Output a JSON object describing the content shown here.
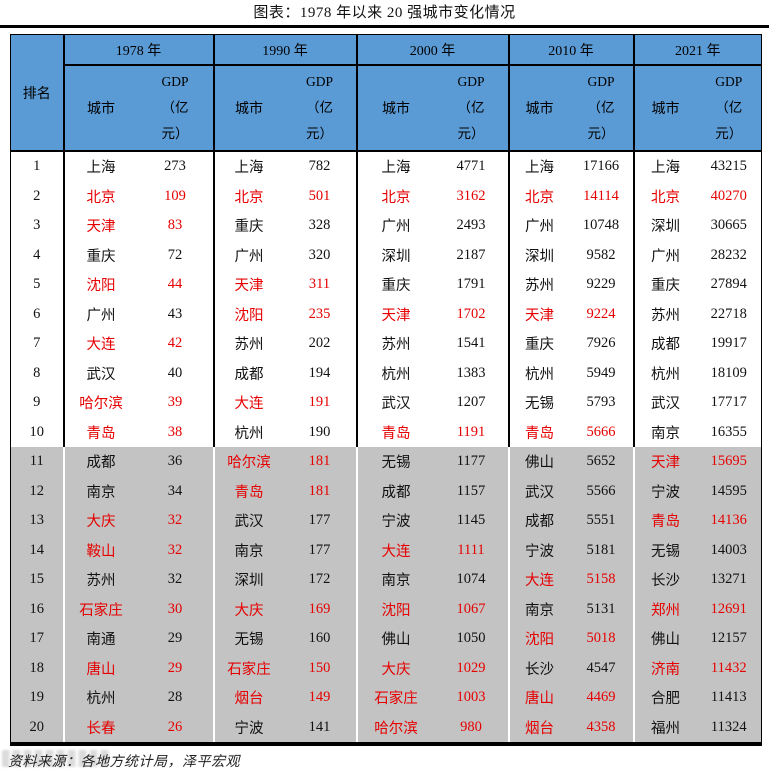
{
  "chart_data": {
    "type": "table",
    "title": "图表：1978 年以来 20 强城市变化情况",
    "rank_header": "排名",
    "years": [
      "1978 年",
      "1990 年",
      "2000 年",
      "2010 年",
      "2021 年"
    ],
    "city_header": "城市",
    "gdp_header_lines": [
      "GDP",
      "（亿",
      "元）"
    ],
    "layout": {
      "rows_11_to_20_highlighted_gray": true,
      "red_text_marks_cities": true
    },
    "rows": [
      {
        "rank": 1,
        "cells": [
          {
            "city": "上海",
            "gdp": 273,
            "red": false
          },
          {
            "city": "上海",
            "gdp": 782,
            "red": false
          },
          {
            "city": "上海",
            "gdp": 4771,
            "red": false
          },
          {
            "city": "上海",
            "gdp": 17166,
            "red": false
          },
          {
            "city": "上海",
            "gdp": 43215,
            "red": false
          }
        ]
      },
      {
        "rank": 2,
        "cells": [
          {
            "city": "北京",
            "gdp": 109,
            "red": true
          },
          {
            "city": "北京",
            "gdp": 501,
            "red": true
          },
          {
            "city": "北京",
            "gdp": 3162,
            "red": true
          },
          {
            "city": "北京",
            "gdp": 14114,
            "red": true
          },
          {
            "city": "北京",
            "gdp": 40270,
            "red": true
          }
        ]
      },
      {
        "rank": 3,
        "cells": [
          {
            "city": "天津",
            "gdp": 83,
            "red": true
          },
          {
            "city": "重庆",
            "gdp": 328,
            "red": false
          },
          {
            "city": "广州",
            "gdp": 2493,
            "red": false
          },
          {
            "city": "广州",
            "gdp": 10748,
            "red": false
          },
          {
            "city": "深圳",
            "gdp": 30665,
            "red": false
          }
        ]
      },
      {
        "rank": 4,
        "cells": [
          {
            "city": "重庆",
            "gdp": 72,
            "red": false
          },
          {
            "city": "广州",
            "gdp": 320,
            "red": false
          },
          {
            "city": "深圳",
            "gdp": 2187,
            "red": false
          },
          {
            "city": "深圳",
            "gdp": 9582,
            "red": false
          },
          {
            "city": "广州",
            "gdp": 28232,
            "red": false
          }
        ]
      },
      {
        "rank": 5,
        "cells": [
          {
            "city": "沈阳",
            "gdp": 44,
            "red": true
          },
          {
            "city": "天津",
            "gdp": 311,
            "red": true
          },
          {
            "city": "重庆",
            "gdp": 1791,
            "red": false
          },
          {
            "city": "苏州",
            "gdp": 9229,
            "red": false
          },
          {
            "city": "重庆",
            "gdp": 27894,
            "red": false
          }
        ]
      },
      {
        "rank": 6,
        "cells": [
          {
            "city": "广州",
            "gdp": 43,
            "red": false
          },
          {
            "city": "沈阳",
            "gdp": 235,
            "red": true
          },
          {
            "city": "天津",
            "gdp": 1702,
            "red": true
          },
          {
            "city": "天津",
            "gdp": 9224,
            "red": true
          },
          {
            "city": "苏州",
            "gdp": 22718,
            "red": false
          }
        ]
      },
      {
        "rank": 7,
        "cells": [
          {
            "city": "大连",
            "gdp": 42,
            "red": true
          },
          {
            "city": "苏州",
            "gdp": 202,
            "red": false
          },
          {
            "city": "苏州",
            "gdp": 1541,
            "red": false
          },
          {
            "city": "重庆",
            "gdp": 7926,
            "red": false
          },
          {
            "city": "成都",
            "gdp": 19917,
            "red": false
          }
        ]
      },
      {
        "rank": 8,
        "cells": [
          {
            "city": "武汉",
            "gdp": 40,
            "red": false
          },
          {
            "city": "成都",
            "gdp": 194,
            "red": false
          },
          {
            "city": "杭州",
            "gdp": 1383,
            "red": false
          },
          {
            "city": "杭州",
            "gdp": 5949,
            "red": false
          },
          {
            "city": "杭州",
            "gdp": 18109,
            "red": false
          }
        ]
      },
      {
        "rank": 9,
        "cells": [
          {
            "city": "哈尔滨",
            "gdp": 39,
            "red": true
          },
          {
            "city": "大连",
            "gdp": 191,
            "red": true
          },
          {
            "city": "武汉",
            "gdp": 1207,
            "red": false
          },
          {
            "city": "无锡",
            "gdp": 5793,
            "red": false
          },
          {
            "city": "武汉",
            "gdp": 17717,
            "red": false
          }
        ]
      },
      {
        "rank": 10,
        "cells": [
          {
            "city": "青岛",
            "gdp": 38,
            "red": true
          },
          {
            "city": "杭州",
            "gdp": 190,
            "red": false
          },
          {
            "city": "青岛",
            "gdp": 1191,
            "red": true
          },
          {
            "city": "青岛",
            "gdp": 5666,
            "red": true
          },
          {
            "city": "南京",
            "gdp": 16355,
            "red": false
          }
        ]
      },
      {
        "rank": 11,
        "cells": [
          {
            "city": "成都",
            "gdp": 36,
            "red": false
          },
          {
            "city": "哈尔滨",
            "gdp": 181,
            "red": true
          },
          {
            "city": "无锡",
            "gdp": 1177,
            "red": false
          },
          {
            "city": "佛山",
            "gdp": 5652,
            "red": false
          },
          {
            "city": "天津",
            "gdp": 15695,
            "red": true
          }
        ]
      },
      {
        "rank": 12,
        "cells": [
          {
            "city": "南京",
            "gdp": 34,
            "red": false
          },
          {
            "city": "青岛",
            "gdp": 181,
            "red": true
          },
          {
            "city": "成都",
            "gdp": 1157,
            "red": false
          },
          {
            "city": "武汉",
            "gdp": 5566,
            "red": false
          },
          {
            "city": "宁波",
            "gdp": 14595,
            "red": false
          }
        ]
      },
      {
        "rank": 13,
        "cells": [
          {
            "city": "大庆",
            "gdp": 32,
            "red": true
          },
          {
            "city": "武汉",
            "gdp": 177,
            "red": false
          },
          {
            "city": "宁波",
            "gdp": 1145,
            "red": false
          },
          {
            "city": "成都",
            "gdp": 5551,
            "red": false
          },
          {
            "city": "青岛",
            "gdp": 14136,
            "red": true
          }
        ]
      },
      {
        "rank": 14,
        "cells": [
          {
            "city": "鞍山",
            "gdp": 32,
            "red": true
          },
          {
            "city": "南京",
            "gdp": 177,
            "red": false
          },
          {
            "city": "大连",
            "gdp": 1111,
            "red": true
          },
          {
            "city": "宁波",
            "gdp": 5181,
            "red": false
          },
          {
            "city": "无锡",
            "gdp": 14003,
            "red": false
          }
        ]
      },
      {
        "rank": 15,
        "cells": [
          {
            "city": "苏州",
            "gdp": 32,
            "red": false
          },
          {
            "city": "深圳",
            "gdp": 172,
            "red": false
          },
          {
            "city": "南京",
            "gdp": 1074,
            "red": false
          },
          {
            "city": "大连",
            "gdp": 5158,
            "red": true
          },
          {
            "city": "长沙",
            "gdp": 13271,
            "red": false
          }
        ]
      },
      {
        "rank": 16,
        "cells": [
          {
            "city": "石家庄",
            "gdp": 30,
            "red": true
          },
          {
            "city": "大庆",
            "gdp": 169,
            "red": true
          },
          {
            "city": "沈阳",
            "gdp": 1067,
            "red": true
          },
          {
            "city": "南京",
            "gdp": 5131,
            "red": false
          },
          {
            "city": "郑州",
            "gdp": 12691,
            "red": true
          }
        ]
      },
      {
        "rank": 17,
        "cells": [
          {
            "city": "南通",
            "gdp": 29,
            "red": false
          },
          {
            "city": "无锡",
            "gdp": 160,
            "red": false
          },
          {
            "city": "佛山",
            "gdp": 1050,
            "red": false
          },
          {
            "city": "沈阳",
            "gdp": 5018,
            "red": true
          },
          {
            "city": "佛山",
            "gdp": 12157,
            "red": false
          }
        ]
      },
      {
        "rank": 18,
        "cells": [
          {
            "city": "唐山",
            "gdp": 29,
            "red": true
          },
          {
            "city": "石家庄",
            "gdp": 150,
            "red": true
          },
          {
            "city": "大庆",
            "gdp": 1029,
            "red": true
          },
          {
            "city": "长沙",
            "gdp": 4547,
            "red": false
          },
          {
            "city": "济南",
            "gdp": 11432,
            "red": true
          }
        ]
      },
      {
        "rank": 19,
        "cells": [
          {
            "city": "杭州",
            "gdp": 28,
            "red": false
          },
          {
            "city": "烟台",
            "gdp": 149,
            "red": true
          },
          {
            "city": "石家庄",
            "gdp": 1003,
            "red": true
          },
          {
            "city": "唐山",
            "gdp": 4469,
            "red": true
          },
          {
            "city": "合肥",
            "gdp": 11413,
            "red": false
          }
        ]
      },
      {
        "rank": 20,
        "cells": [
          {
            "city": "长春",
            "gdp": 26,
            "red": true
          },
          {
            "city": "宁波",
            "gdp": 141,
            "red": false
          },
          {
            "city": "哈尔滨",
            "gdp": 980,
            "red": true
          },
          {
            "city": "烟台",
            "gdp": 4358,
            "red": true
          },
          {
            "city": "福州",
            "gdp": 11324,
            "red": false
          }
        ]
      }
    ]
  },
  "footer": {
    "source": "资料来源：各地方统计局，泽平宏观"
  },
  "colors": {
    "header_blue": "#5B9BD5",
    "highlight_gray": "#C3C3C3",
    "red": "#E60000"
  }
}
